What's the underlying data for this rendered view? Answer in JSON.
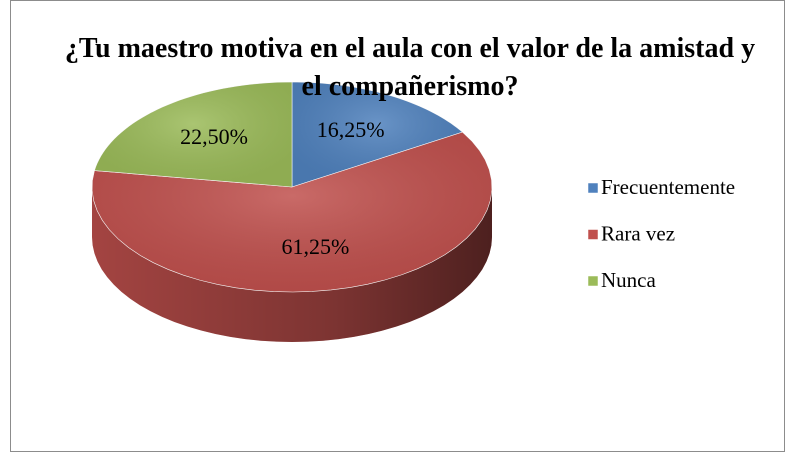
{
  "chart_data": {
    "type": "pie3d",
    "title": "¿Tu maestro motiva en el aula con el valor de la amistad y el compañerismo?",
    "categories": [
      "Frecuentemente",
      "Rara vez",
      "Nunca"
    ],
    "values": [
      16.25,
      61.25,
      22.5
    ],
    "value_labels": [
      "16,25%",
      "61,25%",
      "22,50%"
    ],
    "colors": [
      "#4f81bd",
      "#c0504d",
      "#9bbb59"
    ],
    "legend": "right"
  }
}
